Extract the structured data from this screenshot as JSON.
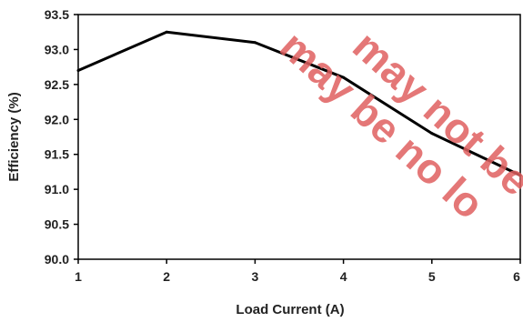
{
  "chart_data": {
    "type": "line",
    "xlabel": "Load Current (A)",
    "ylabel": "Efficiency (%)",
    "x": [
      1,
      2,
      3,
      4,
      5,
      6
    ],
    "xticks": [
      "1",
      "2",
      "3",
      "4",
      "5",
      "6"
    ],
    "yticks": [
      "90.0",
      "90.5",
      "91.0",
      "91.5",
      "92.0",
      "92.5",
      "93.0",
      "93.5"
    ],
    "xlim": [
      1,
      6
    ],
    "ylim": [
      90.0,
      93.5
    ],
    "grid": false,
    "series": [
      {
        "values": [
          92.7,
          93.25,
          93.1,
          92.6,
          91.8,
          91.2
        ],
        "color": "#000000"
      }
    ]
  },
  "watermark": {
    "line1": "may be no lo",
    "line2": "may not be in",
    "color": "#e06060"
  }
}
